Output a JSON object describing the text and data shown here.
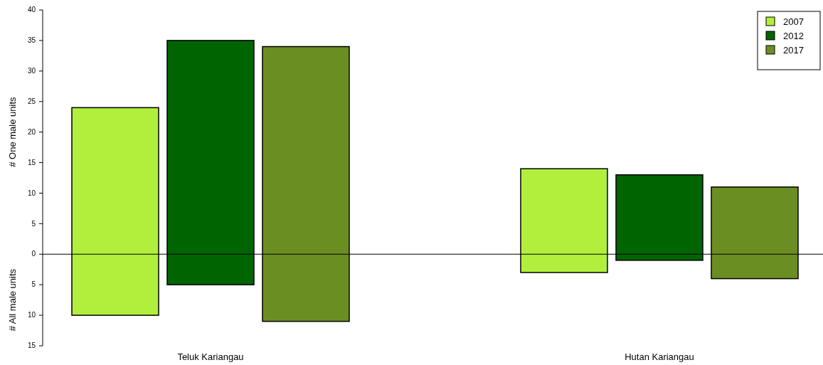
{
  "chart_data": {
    "type": "bar",
    "ylabel": "# One male units",
    "annotations": [
      "# All male units"
    ],
    "categories": [
      "Teluk Kariangau",
      "Hutan Kariangau"
    ],
    "series": [
      {
        "name": "2007",
        "color": "#b2ef3c",
        "base": [
          -10,
          -3
        ],
        "values": [
          34,
          17
        ]
      },
      {
        "name": "2012",
        "color": "#006400",
        "base": [
          -5,
          -1
        ],
        "values": [
          40,
          14
        ]
      },
      {
        "name": "2017",
        "color": "#6b8e23",
        "base": [
          -11,
          -4
        ],
        "values": [
          45,
          15
        ]
      }
    ],
    "ylim": [
      -15,
      40
    ],
    "yticks": [
      {
        "value": -15,
        "label": "15"
      },
      {
        "value": -10,
        "label": "10"
      },
      {
        "value": -5,
        "label": "5"
      },
      0,
      5,
      10,
      15,
      20,
      25,
      30,
      35,
      40
    ],
    "ref_lines": [
      {
        "axis": "y",
        "value": 0,
        "color": "#000000"
      }
    ],
    "legend": "top right",
    "grid": false
  }
}
